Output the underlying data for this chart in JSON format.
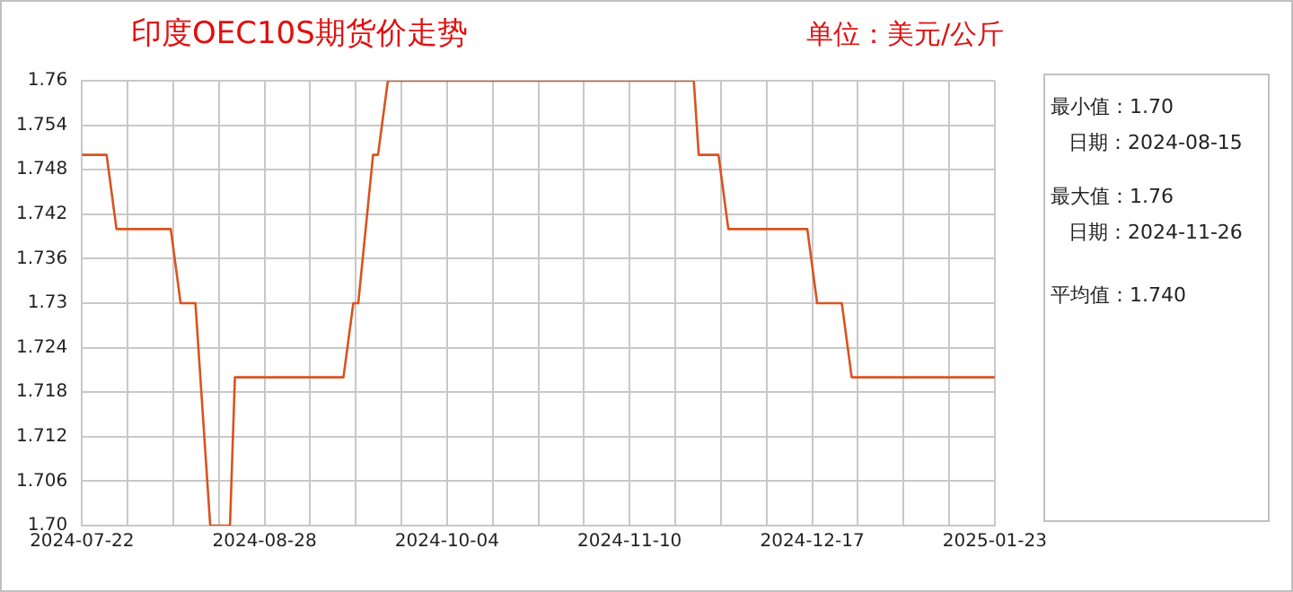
{
  "chart_data": {
    "type": "line",
    "title": "印度OEC10S期货价走势",
    "subtitle": "单位：美元/公斤",
    "annotations": [
      "最小值：1.70",
      "日期：2024-08-15",
      "最大值：1.76",
      "日期：2024-11-26",
      "平均值：1.740"
    ],
    "x": [
      "2024-07-22",
      "2024-07-27",
      "2024-07-29",
      "2024-08-09",
      "2024-08-11",
      "2024-08-14",
      "2024-08-17",
      "2024-08-21",
      "2024-08-22",
      "2024-09-13",
      "2024-09-15",
      "2024-09-16",
      "2024-09-19",
      "2024-09-20",
      "2024-09-22",
      "2024-11-23",
      "2024-11-24",
      "2024-11-28",
      "2024-11-30",
      "2024-12-16",
      "2024-12-18",
      "2024-12-23",
      "2024-12-25",
      "2025-01-23"
    ],
    "series": [
      {
        "color": "#d9531e",
        "values": [
          1.75,
          1.75,
          1.74,
          1.74,
          1.73,
          1.73,
          1.7,
          1.7,
          1.72,
          1.72,
          1.73,
          1.73,
          1.75,
          1.75,
          1.76,
          1.76,
          1.75,
          1.75,
          1.74,
          1.74,
          1.73,
          1.73,
          1.72,
          1.72
        ]
      }
    ],
    "xlim": [
      "2024-07-22",
      "2025-01-23"
    ],
    "xticks": [
      "2024-07-22",
      {
        "value": "2024-07-31T06:00",
        "label": null
      },
      {
        "value": "2024-08-09T12:00",
        "label": null
      },
      {
        "value": "2024-08-18T18:00",
        "label": null
      },
      "2024-08-28",
      {
        "value": "2024-09-06T06:00",
        "label": null
      },
      {
        "value": "2024-09-15T12:00",
        "label": null
      },
      {
        "value": "2024-09-24T18:00",
        "label": null
      },
      "2024-10-04",
      {
        "value": "2024-10-13T06:00",
        "label": null
      },
      {
        "value": "2024-10-22T12:00",
        "label": null
      },
      {
        "value": "2024-10-31T18:00",
        "label": null
      },
      "2024-11-10",
      {
        "value": "2024-11-19T06:00",
        "label": null
      },
      {
        "value": "2024-11-28T12:00",
        "label": null
      },
      {
        "value": "2024-12-07T18:00",
        "label": null
      },
      "2024-12-17",
      {
        "value": "2024-12-26T06:00",
        "label": null
      },
      {
        "value": "2025-01-04T12:00",
        "label": null
      },
      {
        "value": "2025-01-13T18:00",
        "label": null
      },
      "2025-01-23"
    ],
    "ylim": [
      1.7,
      1.76
    ],
    "yticks": [
      {
        "value": 1.7,
        "label": "1.70"
      },
      1.706,
      1.712,
      1.718,
      1.724,
      1.73,
      1.736,
      1.742,
      1.748,
      1.754,
      1.76
    ],
    "grid": true
  }
}
